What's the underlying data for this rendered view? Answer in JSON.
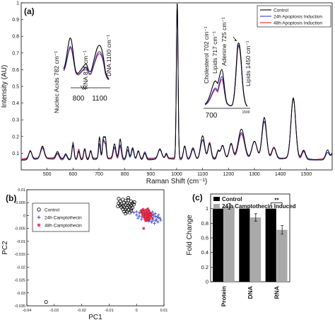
{
  "chart_data": [
    {
      "panel": "(a)",
      "type": "line",
      "xlabel": "Raman Shift (cm⁻¹)",
      "ylabel": "Intensity (AU)",
      "xlim": [
        400,
        1600
      ],
      "ylim": [
        0,
        1
      ],
      "xticks": [
        500,
        600,
        700,
        800,
        900,
        1000,
        1100,
        1200,
        1300,
        1400,
        1500
      ],
      "yticks": [
        0.1,
        0.2,
        0.3,
        0.4,
        0.5,
        0.6,
        0.7,
        0.8,
        0.9,
        1
      ],
      "legend_position": "top-right",
      "baseline": 0.065,
      "peaks": [
        {
          "x": 435,
          "w": 6,
          "h": [
            0.055,
            0.045,
            0.04
          ]
        },
        {
          "x": 482,
          "w": 7,
          "h": [
            0.075,
            0.065,
            0.06
          ]
        },
        {
          "x": 540,
          "w": 6,
          "h": [
            0.04,
            0.035,
            0.035
          ]
        },
        {
          "x": 572,
          "w": 5,
          "h": [
            0.03,
            0.028,
            0.03
          ]
        },
        {
          "x": 600,
          "w": 4,
          "h": [
            0.085,
            0.1,
            0.105
          ]
        },
        {
          "x": 622,
          "w": 4,
          "h": [
            0.05,
            0.055,
            0.06
          ]
        },
        {
          "x": 645,
          "w": 4,
          "h": [
            0.065,
            0.06,
            0.06
          ]
        },
        {
          "x": 668,
          "w": 4,
          "h": [
            0.055,
            0.045,
            0.045
          ]
        },
        {
          "x": 702,
          "w": 3.5,
          "h": [
            0.13,
            0.085,
            0.08
          ]
        },
        {
          "x": 717,
          "w": 3.5,
          "h": [
            0.12,
            0.105,
            0.1
          ]
        },
        {
          "x": 725,
          "w": 3.5,
          "h": [
            0.12,
            0.085,
            0.08
          ]
        },
        {
          "x": 760,
          "w": 5,
          "h": [
            0.085,
            0.07,
            0.07
          ]
        },
        {
          "x": 782,
          "w": 4.5,
          "h": [
            0.115,
            0.085,
            0.08
          ]
        },
        {
          "x": 811,
          "w": 4.5,
          "h": [
            0.075,
            0.06,
            0.06
          ]
        },
        {
          "x": 830,
          "w": 5,
          "h": [
            0.07,
            0.065,
            0.06
          ]
        },
        {
          "x": 852,
          "w": 5,
          "h": [
            0.055,
            0.05,
            0.045
          ]
        },
        {
          "x": 877,
          "w": 5,
          "h": [
            0.04,
            0.045,
            0.04
          ]
        },
        {
          "x": 935,
          "w": 7,
          "h": [
            0.06,
            0.05,
            0.05
          ]
        },
        {
          "x": 960,
          "w": 4,
          "h": [
            0.025,
            0.03,
            0.025
          ]
        },
        {
          "x": 1002,
          "w": 3.2,
          "h": [
            0.93,
            0.935,
            0.935
          ]
        },
        {
          "x": 1031,
          "w": 5,
          "h": [
            0.075,
            0.08,
            0.085
          ]
        },
        {
          "x": 1063,
          "w": 7,
          "h": [
            0.07,
            0.065,
            0.06
          ]
        },
        {
          "x": 1100,
          "w": 8,
          "h": [
            0.145,
            0.12,
            0.11
          ]
        },
        {
          "x": 1127,
          "w": 6,
          "h": [
            0.095,
            0.095,
            0.095
          ]
        },
        {
          "x": 1160,
          "w": 5,
          "h": [
            0.045,
            0.045,
            0.045
          ]
        },
        {
          "x": 1177,
          "w": 7,
          "h": [
            0.08,
            0.075,
            0.075
          ]
        },
        {
          "x": 1210,
          "w": 7,
          "h": [
            0.085,
            0.09,
            0.09
          ]
        },
        {
          "x": 1250,
          "w": 12,
          "h": [
            0.175,
            0.16,
            0.155
          ]
        },
        {
          "x": 1300,
          "w": 10,
          "h": [
            0.11,
            0.11,
            0.11
          ]
        },
        {
          "x": 1338,
          "w": 9,
          "h": [
            0.255,
            0.23,
            0.22
          ]
        },
        {
          "x": 1375,
          "w": 8,
          "h": [
            0.07,
            0.065,
            0.065
          ]
        },
        {
          "x": 1450,
          "w": 9,
          "h": [
            0.36,
            0.36,
            0.36
          ]
        },
        {
          "x": 1490,
          "w": 7,
          "h": [
            0.05,
            0.05,
            0.05
          ]
        },
        {
          "x": 1582,
          "w": 7,
          "h": [
            0.06,
            0.04,
            0.035
          ]
        },
        {
          "x": 1605,
          "w": 7,
          "h": [
            0.05,
            0.04,
            0.04
          ]
        }
      ],
      "series": [
        {
          "name": "Control",
          "color": "#000000"
        },
        {
          "name": "24h Apoptosis Induction",
          "color": "#2b3cc9"
        },
        {
          "name": "48h Apoptosis Induction",
          "color": "#e0203a"
        }
      ],
      "annotations": [
        "Nucleic Acids 782 cm⁻¹",
        "RNA 811 cm⁻¹",
        "DNA 1100 cm⁻¹",
        "Cholesterol 702 cm⁻¹",
        "Lipids 717 cm⁻¹",
        "Adenine 725 cm⁻¹",
        "Lipids 1450 cm⁻¹"
      ],
      "inset1_ticks": [
        "800",
        "1100"
      ],
      "inset2_ticks": [
        "700",
        "1500"
      ]
    },
    {
      "panel": "(b)",
      "type": "scatter",
      "xlabel": "PC1",
      "ylabel": "PC2",
      "xlim": [
        -0.04,
        0.01
      ],
      "ylim": [
        -0.035,
        0.01
      ],
      "xticks": [
        -0.04,
        -0.03,
        -0.02,
        -0.01,
        0,
        0.01
      ],
      "yticks": [
        -0.035,
        -0.03,
        -0.025,
        -0.02,
        -0.015,
        -0.01,
        -0.005,
        0,
        0.005,
        0.01
      ],
      "legend_position": "top-left",
      "series": [
        {
          "name": "Control",
          "marker": "circle",
          "color": "#000000",
          "points": [
            [
              -0.033,
              -0.0335
            ],
            [
              -0.006,
              0.0055
            ],
            [
              -0.005,
              0.0062
            ],
            [
              -0.004,
              0.0058
            ],
            [
              -0.003,
              0.006
            ],
            [
              -0.002,
              0.0055
            ],
            [
              -0.0065,
              0.0048
            ],
            [
              -0.0055,
              0.0045
            ],
            [
              -0.0045,
              0.005
            ],
            [
              -0.0035,
              0.0047
            ],
            [
              -0.0025,
              0.0045
            ],
            [
              -0.0015,
              0.0048
            ],
            [
              -0.006,
              0.004
            ],
            [
              -0.005,
              0.0038
            ],
            [
              -0.004,
              0.0042
            ],
            [
              -0.003,
              0.0039
            ],
            [
              -0.002,
              0.004
            ],
            [
              -0.001,
              0.0043
            ],
            [
              -0.0055,
              0.0032
            ],
            [
              -0.0045,
              0.0033
            ],
            [
              -0.0035,
              0.003
            ],
            [
              -0.0025,
              0.0034
            ],
            [
              -0.0015,
              0.003
            ],
            [
              -0.005,
              0.0025
            ],
            [
              -0.004,
              0.0024
            ],
            [
              -0.003,
              0.0022
            ],
            [
              -0.002,
              0.0026
            ],
            [
              -0.0045,
              0.0016
            ],
            [
              -0.0035,
              0.0015
            ],
            [
              -0.0025,
              0.0012
            ],
            [
              -0.0065,
              0.0065
            ],
            [
              -0.0008,
              0.0052
            ],
            [
              -0.0068,
              0.0036
            ],
            [
              -0.003,
              0.0068
            ],
            [
              -0.004,
              0.0008
            ],
            [
              -0.002,
              0.0018
            ]
          ]
        },
        {
          "name": "24h Camptothecin",
          "marker": "plus",
          "color": "#2b3cc9",
          "points": [
            [
              -0.001,
              0.0012
            ],
            [
              0.0,
              0.0015
            ],
            [
              0.001,
              0.001
            ],
            [
              0.002,
              0.0012
            ],
            [
              0.003,
              0.0008
            ],
            [
              0.004,
              0.0005
            ],
            [
              0.005,
              0.0009
            ],
            [
              0.0055,
              0.0
            ],
            [
              0.0062,
              0.0003
            ],
            [
              0.0068,
              -0.0003
            ],
            [
              0.0075,
              -0.0005
            ],
            [
              0.008,
              -0.0008
            ],
            [
              0.0085,
              -0.001
            ],
            [
              0.0,
              0.0002
            ],
            [
              0.001,
              -0.0002
            ],
            [
              0.002,
              -0.0005
            ],
            [
              0.003,
              -0.0008
            ],
            [
              0.004,
              -0.0012
            ],
            [
              0.005,
              -0.0015
            ],
            [
              0.006,
              -0.0018
            ],
            [
              0.007,
              -0.002
            ],
            [
              0.0015,
              0.0018
            ],
            [
              0.0025,
              0.002
            ],
            [
              0.0035,
              0.0015
            ],
            [
              0.0045,
              -0.0022
            ],
            [
              0.0055,
              -0.0025
            ],
            [
              0.0065,
              -0.003
            ],
            [
              0.0072,
              -0.0015
            ],
            [
              0.0078,
              -0.0025
            ],
            [
              0.008,
              0.0002
            ],
            [
              0.0005,
              -0.001
            ],
            [
              0.0018,
              -0.0015
            ],
            [
              0.0038,
              -0.002
            ],
            [
              0.0048,
              0.0012
            ],
            [
              0.0058,
              0.0014
            ],
            [
              0.006,
              -0.001
            ],
            [
              0.0042,
              0.0002
            ],
            [
              0.0028,
              0.0001
            ],
            [
              0.0068,
              0.0008
            ],
            [
              0.0088,
              -0.0018
            ]
          ]
        },
        {
          "name": "48h Camptothecin",
          "marker": "star",
          "color": "#e0203a",
          "points": [
            [
              0.002,
              0.002
            ],
            [
              0.0028,
              0.0018
            ],
            [
              0.0035,
              0.0022
            ],
            [
              0.004,
              0.0016
            ],
            [
              0.0045,
              0.0019
            ],
            [
              0.0025,
              0.001
            ],
            [
              0.0032,
              0.0008
            ],
            [
              0.0038,
              0.0011
            ],
            [
              0.0044,
              0.0006
            ],
            [
              0.005,
              0.001
            ],
            [
              0.0022,
              0.0003
            ],
            [
              0.003,
              0.0
            ],
            [
              0.0036,
              0.0002
            ],
            [
              0.0042,
              -0.0002
            ],
            [
              0.0048,
              0.0001
            ],
            [
              0.0027,
              -0.0006
            ],
            [
              0.0034,
              -0.0008
            ],
            [
              0.004,
              -0.0005
            ],
            [
              0.0046,
              -0.0009
            ],
            [
              0.0031,
              -0.0014
            ],
            [
              0.0038,
              -0.0013
            ],
            [
              0.0044,
              -0.0016
            ],
            [
              0.0052,
              -0.0004
            ],
            [
              0.0055,
              0.0005
            ],
            [
              0.0018,
              0.0012
            ],
            [
              0.0024,
              0.0024
            ],
            [
              0.0041,
              0.0026
            ],
            [
              0.0033,
              -0.002
            ],
            [
              0.0026,
              -0.005
            ],
            [
              0.0058,
              -0.001
            ]
          ]
        }
      ]
    },
    {
      "panel": "(c)",
      "type": "bar",
      "ylabel": "Fold Change",
      "ylim": [
        0,
        1.2
      ],
      "yticks": [
        0,
        0.2,
        0.4,
        0.6,
        0.8,
        1
      ],
      "categories": [
        "Protein",
        "DNA",
        "RNA"
      ],
      "legend_position": "top",
      "series": [
        {
          "name": "Control",
          "color": "#000000",
          "values": [
            1.0,
            1.0,
            1.0
          ]
        },
        {
          "name": "24 h Camptothecin Induced",
          "color": "#a9a9a9",
          "values": [
            1.03,
            0.88,
            0.71
          ],
          "errors": [
            0.04,
            0.05,
            0.06
          ]
        }
      ],
      "significance": {
        "category": "RNA",
        "label": "**"
      }
    }
  ]
}
